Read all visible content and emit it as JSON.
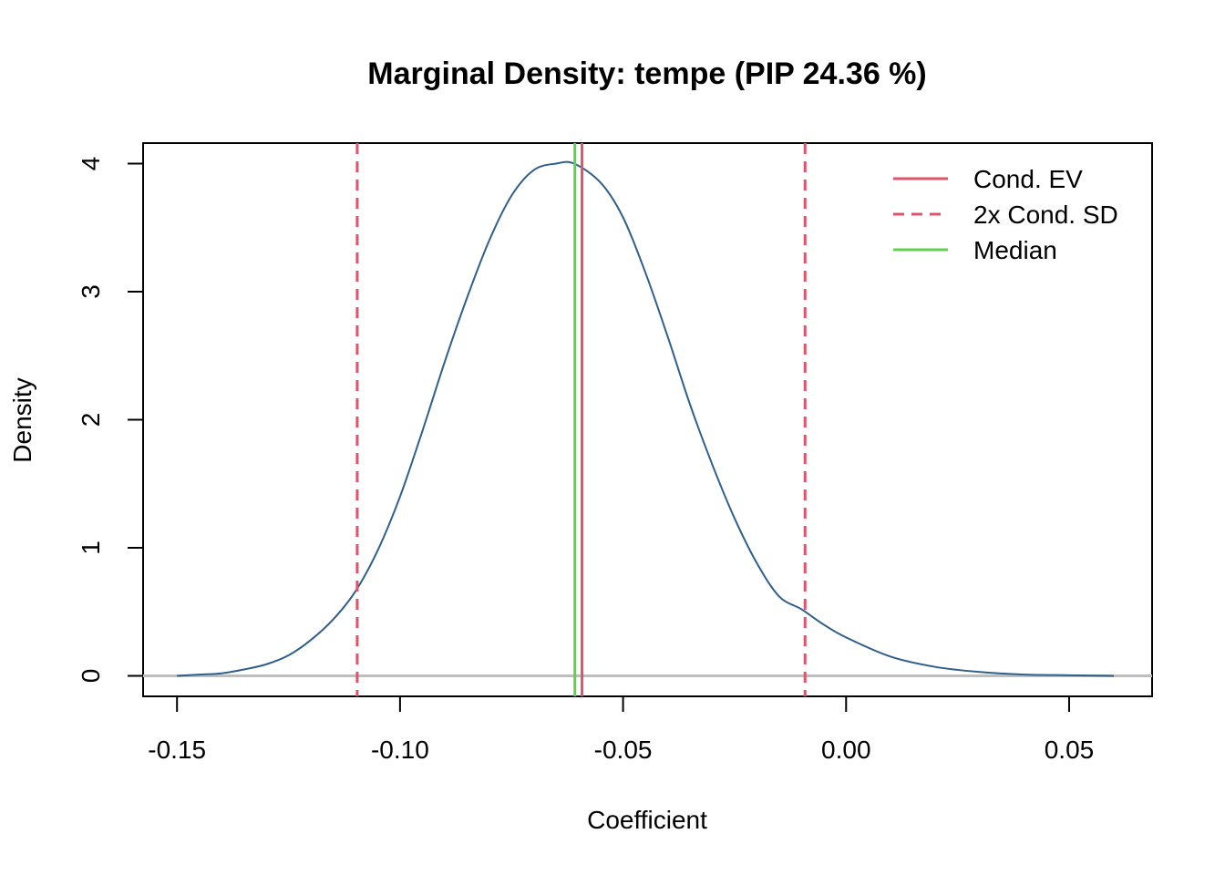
{
  "chart_data": {
    "type": "line",
    "title": "Marginal Density: tempe (PIP 24.36 %)",
    "xlabel": "Coefficient",
    "ylabel": "Density",
    "xlim": [
      -0.1576,
      0.0686
    ],
    "ylim": [
      -0.16,
      4.16
    ],
    "x_ticks": [
      -0.15,
      -0.1,
      -0.05,
      0.0,
      0.05
    ],
    "x_tick_labels": [
      "-0.15",
      "-0.10",
      "-0.05",
      "0.00",
      "0.05"
    ],
    "y_ticks": [
      0,
      1,
      2,
      3,
      4
    ],
    "y_tick_labels": [
      "0",
      "1",
      "2",
      "3",
      "4"
    ],
    "grid": false,
    "legend_position": "top-right",
    "series": [
      {
        "kind": "density",
        "color": "#2f5f8a",
        "x": [
          -0.15,
          -0.145,
          -0.14,
          -0.135,
          -0.13,
          -0.125,
          -0.12,
          -0.115,
          -0.11,
          -0.105,
          -0.1,
          -0.095,
          -0.09,
          -0.085,
          -0.08,
          -0.075,
          -0.07,
          -0.065,
          -0.061,
          -0.055,
          -0.05,
          -0.045,
          -0.04,
          -0.035,
          -0.03,
          -0.025,
          -0.02,
          -0.015,
          -0.01,
          -0.005,
          0.0,
          0.01,
          0.02,
          0.03,
          0.04,
          0.05,
          0.06
        ],
        "y": [
          0.0,
          0.01,
          0.02,
          0.05,
          0.09,
          0.16,
          0.28,
          0.44,
          0.66,
          0.98,
          1.4,
          1.91,
          2.45,
          2.95,
          3.4,
          3.75,
          3.95,
          4.0,
          4.0,
          3.85,
          3.58,
          3.15,
          2.65,
          2.12,
          1.65,
          1.23,
          0.88,
          0.62,
          0.52,
          0.4,
          0.3,
          0.15,
          0.07,
          0.03,
          0.01,
          0.005,
          0.0
        ]
      },
      {
        "kind": "baseline",
        "color": "#bebebe",
        "y": 0
      }
    ],
    "vlines": [
      {
        "name": "Cond. EV",
        "x": -0.0592,
        "color": "#df536b",
        "style": "solid"
      },
      {
        "name": "2x Cond. SD",
        "x": -0.1096,
        "color": "#df536b",
        "style": "dashed"
      },
      {
        "name": "2x Cond. SD",
        "x": -0.0092,
        "color": "#df536b",
        "style": "dashed"
      },
      {
        "name": "Median",
        "x": -0.0608,
        "color": "#61d04f",
        "style": "solid"
      }
    ],
    "legend": [
      {
        "label": "Cond. EV",
        "color": "#df536b",
        "style": "solid"
      },
      {
        "label": "2x Cond. SD",
        "color": "#df536b",
        "style": "dashed"
      },
      {
        "label": "Median",
        "color": "#61d04f",
        "style": "solid"
      }
    ]
  }
}
